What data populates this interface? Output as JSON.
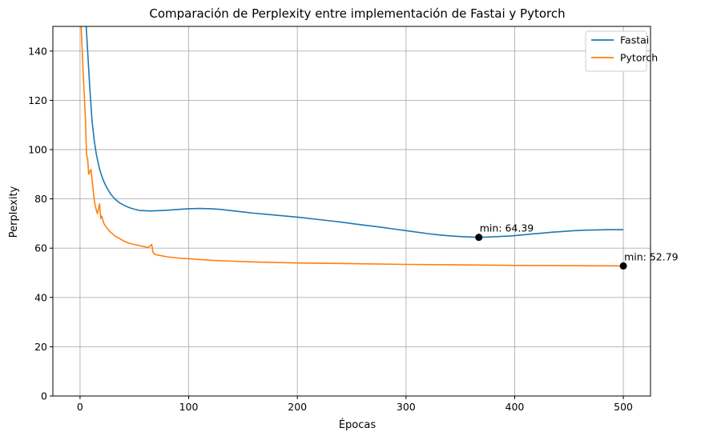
{
  "chart_data": {
    "type": "line",
    "title": "Comparación de Perplexity entre implementación de Fastai y Pytorch",
    "xlabel": "Épocas",
    "ylabel": "Perplexity",
    "xlim": [
      -25,
      525
    ],
    "ylim": [
      0,
      150
    ],
    "xticks": [
      0,
      100,
      200,
      300,
      400,
      500
    ],
    "yticks": [
      0,
      20,
      40,
      60,
      80,
      100,
      120,
      140
    ],
    "grid": true,
    "legend_position": "top-right",
    "series": [
      {
        "name": "Fastai",
        "color": "#1f77b4",
        "x": [
          1,
          3,
          5,
          7,
          9,
          11,
          13,
          15,
          18,
          21,
          24,
          28,
          32,
          36,
          40,
          45,
          50,
          55,
          60,
          65,
          70,
          80,
          90,
          100,
          110,
          120,
          130,
          140,
          150,
          160,
          170,
          180,
          190,
          200,
          210,
          220,
          230,
          240,
          250,
          260,
          270,
          280,
          290,
          300,
          310,
          320,
          330,
          340,
          350,
          360,
          367,
          375,
          385,
          395,
          405,
          415,
          425,
          435,
          445,
          455,
          465,
          475,
          485,
          495,
          500
        ],
        "y": [
          160,
          158,
          155,
          140,
          125,
          112,
          104,
          98,
          92,
          88,
          85,
          82,
          80,
          78.5,
          77.5,
          76.5,
          75.8,
          75.3,
          75.2,
          75.1,
          75.2,
          75.4,
          75.7,
          76.0,
          76.1,
          76.0,
          75.7,
          75.2,
          74.7,
          74.2,
          73.8,
          73.4,
          73.0,
          72.6,
          72.1,
          71.6,
          71.1,
          70.6,
          70.0,
          69.4,
          68.9,
          68.3,
          67.7,
          67.1,
          66.5,
          65.9,
          65.4,
          65.0,
          64.7,
          64.5,
          64.39,
          64.5,
          64.7,
          64.9,
          65.3,
          65.7,
          66.1,
          66.5,
          66.8,
          67.1,
          67.3,
          67.4,
          67.5,
          67.5,
          67.5
        ]
      },
      {
        "name": "Pytorch",
        "color": "#ff7f0e",
        "x": [
          1,
          3,
          5,
          6,
          7,
          8,
          10,
          12,
          13,
          14,
          16,
          18,
          19,
          20,
          22,
          25,
          28,
          32,
          36,
          40,
          45,
          50,
          55,
          60,
          63,
          66,
          67,
          68,
          70,
          75,
          80,
          90,
          100,
          120,
          140,
          160,
          200,
          250,
          300,
          350,
          400,
          450,
          500
        ],
        "y": [
          150,
          130,
          112,
          98,
          96,
          90,
          92,
          84,
          80,
          77,
          74,
          78,
          72,
          73,
          70,
          68,
          66.5,
          65,
          64,
          63,
          62,
          61.5,
          61,
          60.5,
          60.3,
          61.5,
          58.5,
          57.8,
          57.3,
          56.9,
          56.5,
          56.0,
          55.7,
          55.1,
          54.7,
          54.4,
          54.0,
          53.7,
          53.4,
          53.2,
          53.0,
          52.9,
          52.79
        ]
      }
    ],
    "annotations": [
      {
        "text": "min: 64.39",
        "x": 367,
        "y": 64.39
      },
      {
        "text": "min: 52.79",
        "x": 500,
        "y": 52.79
      }
    ]
  }
}
